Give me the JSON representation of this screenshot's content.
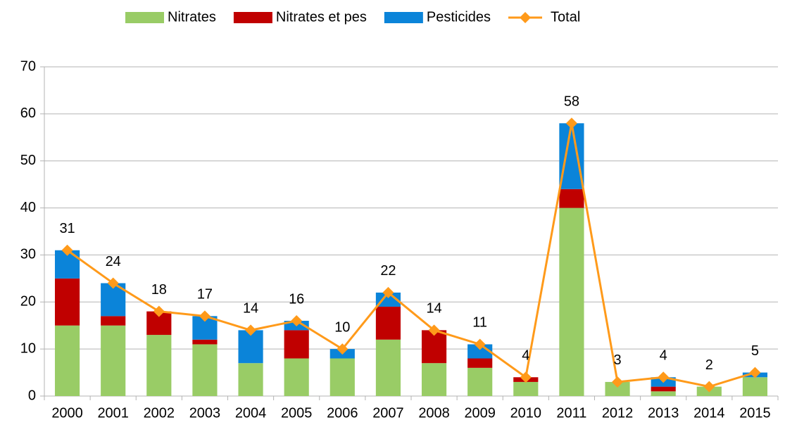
{
  "chart_data": {
    "type": "bar",
    "categories": [
      "2000",
      "2001",
      "2002",
      "2003",
      "2004",
      "2005",
      "2006",
      "2007",
      "2008",
      "2009",
      "2010",
      "2011",
      "2012",
      "2013",
      "2014",
      "2015"
    ],
    "series": [
      {
        "name": "Nitrates",
        "color": "#99cc66",
        "values": [
          15,
          15,
          13,
          11,
          7,
          8,
          8,
          12,
          7,
          6,
          3,
          40,
          3,
          1,
          2,
          4
        ]
      },
      {
        "name": "Nitrates et pes",
        "color": "#c00000",
        "values": [
          10,
          2,
          5,
          1,
          0,
          6,
          0,
          7,
          7,
          2,
          1,
          4,
          0,
          1,
          0,
          0
        ]
      },
      {
        "name": "Pesticides",
        "color": "#0b84d9",
        "values": [
          6,
          7,
          0,
          5,
          7,
          2,
          2,
          3,
          0,
          3,
          0,
          14,
          0,
          2,
          0,
          1
        ]
      },
      {
        "name": "Total",
        "type": "line",
        "color": "#ff9a1a",
        "values": [
          31,
          24,
          18,
          17,
          14,
          16,
          10,
          22,
          14,
          11,
          4,
          58,
          3,
          4,
          2,
          5
        ]
      }
    ],
    "ylim": [
      0,
      70
    ],
    "yticks": [
      0,
      10,
      20,
      30,
      40,
      50,
      60,
      70
    ],
    "grid": true,
    "stacked": true,
    "legend": "top"
  }
}
